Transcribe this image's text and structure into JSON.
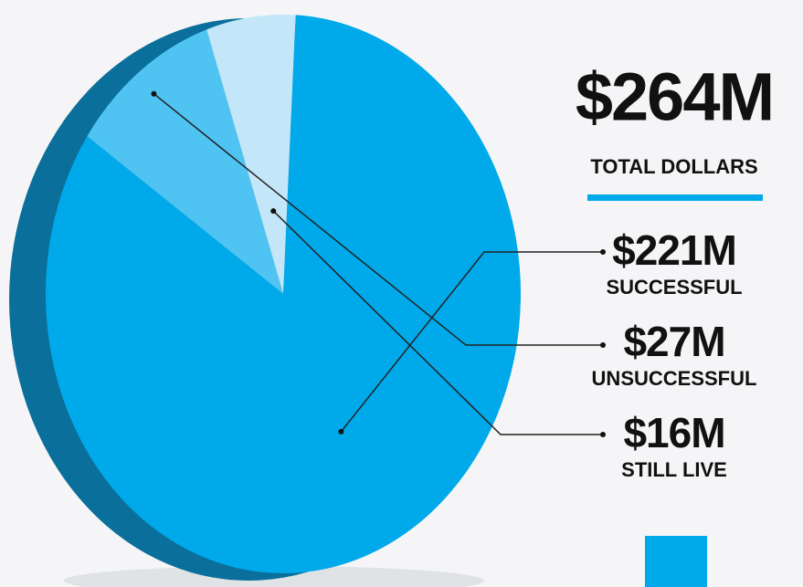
{
  "chart_data": {
    "type": "pie",
    "title": "$264M",
    "subtitle": "TOTAL DOLLARS",
    "categories": [
      "SUCCESSFUL",
      "UNSUCCESSFUL",
      "STILL LIVE"
    ],
    "values": [
      221,
      27,
      16
    ],
    "value_labels": [
      "$221M",
      "$27M",
      "$16M"
    ],
    "colors": [
      "#00a9ea",
      "#4fc4f2",
      "#c3e6f8"
    ]
  }
}
